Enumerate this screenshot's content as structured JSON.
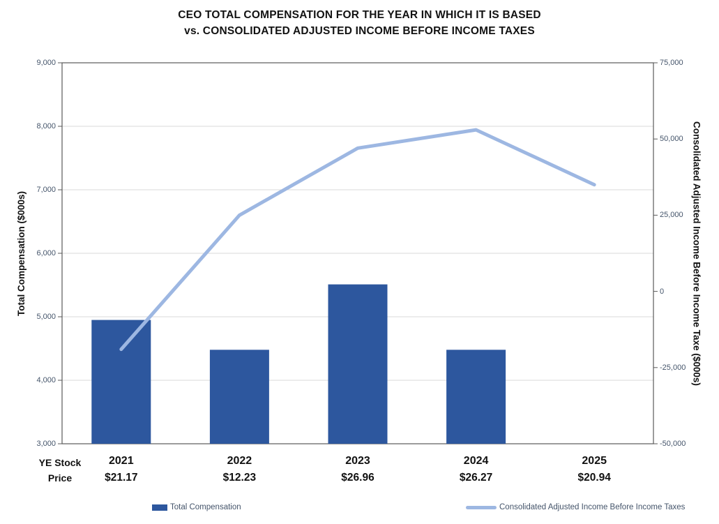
{
  "title": {
    "line1": "CEO TOTAL COMPENSATION FOR THE YEAR IN WHICH IT IS BASED",
    "line2": "vs. CONSOLIDATED ADJUSTED INCOME BEFORE INCOME TAXES"
  },
  "x_axis_header": {
    "line1": "YE Stock",
    "line2": "Price"
  },
  "chart_data": {
    "type": "bar+line combo",
    "categories": [
      "2021",
      "2022",
      "2023",
      "2024",
      "2025"
    ],
    "x_sub_labels": [
      "$21.17",
      "$12.23",
      "$26.96",
      "$26.27",
      "$20.94"
    ],
    "series": [
      {
        "name": "Total Compensation",
        "type": "bar",
        "axis": "left",
        "color": "#2d579e",
        "values": [
          4950,
          4480,
          5510,
          4480,
          null
        ]
      },
      {
        "name": "Consolidated Adjusted Income Before Income Taxes",
        "type": "line",
        "axis": "right",
        "color": "#9db7e2",
        "values": [
          -19000,
          25000,
          47000,
          53000,
          35000
        ]
      }
    ],
    "left_axis": {
      "label": "Total Compensation ($000s)",
      "min": 3000,
      "max": 9000,
      "step": 1000,
      "ticks": [
        "9,000",
        "8,000",
        "7,000",
        "6,000",
        "5,000",
        "4,000",
        "3,000"
      ],
      "tick_values": [
        9000,
        8000,
        7000,
        6000,
        5000,
        4000,
        3000
      ]
    },
    "right_axis": {
      "label": "Consolidated Adjusted Income Before Income Taxe ($000s)",
      "min": -50000,
      "max": 75000,
      "step": 25000,
      "ticks": [
        "75,000",
        "50,000",
        "25,000",
        "0",
        "-25,000",
        "-50,000"
      ],
      "tick_values": [
        75000,
        50000,
        25000,
        0,
        -25000,
        -50000
      ]
    },
    "grid": true,
    "legend_position": "bottom"
  },
  "legend": {
    "items": [
      {
        "label": "Total Compensation",
        "marker": "bar",
        "color": "#2d579e"
      },
      {
        "label": "Consolidated Adjusted Income Before Income Taxes",
        "marker": "line",
        "color": "#9db7e2"
      }
    ]
  },
  "colors": {
    "bar": "#2d579e",
    "line": "#9db7e2",
    "grid": "#d9d9d9",
    "plot_border": "#595959",
    "tick_text": "#44546a",
    "text": "#111111",
    "background": "#ffffff"
  }
}
